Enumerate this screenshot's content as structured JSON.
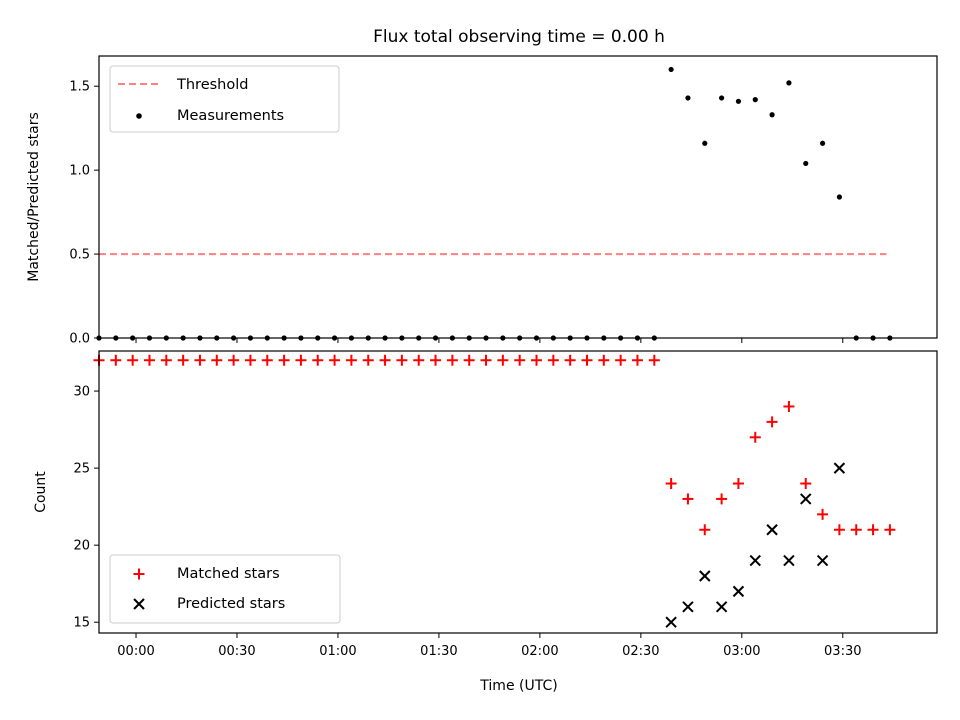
{
  "figure": {
    "title": "Flux total observing time = 0.00 h",
    "xlabel": "Time (UTC)"
  },
  "colors": {
    "threshold": "#ff8080",
    "measurement": "#000000",
    "matched": "#ff0000",
    "predicted": "#000000"
  },
  "chart_data": [
    {
      "type": "scatter",
      "ylabel": "Matched/Predicted stars",
      "xlim": [
        "23:49",
        "03:58"
      ],
      "ylim": [
        0,
        1.68
      ],
      "grid": false,
      "legend": "top-left",
      "x_ticks": [
        "00:00",
        "00:30",
        "01:00",
        "01:30",
        "02:00",
        "02:30",
        "03:00",
        "03:30"
      ],
      "y_ticks": [
        "0.0",
        "0.5",
        "1.0",
        "1.5"
      ],
      "threshold": {
        "name": "Threshold",
        "y": 0.5,
        "x_range": [
          "23:49",
          "03:43"
        ]
      },
      "series": [
        {
          "name": "Measurements",
          "x": [
            "23:49",
            "23:54",
            "23:59",
            "00:04",
            "00:09",
            "00:14",
            "00:19",
            "00:24",
            "00:29",
            "00:34",
            "00:39",
            "00:44",
            "00:49",
            "00:54",
            "00:59",
            "01:04",
            "01:09",
            "01:14",
            "01:19",
            "01:24",
            "01:29",
            "01:34",
            "01:39",
            "01:44",
            "01:49",
            "01:54",
            "01:59",
            "02:04",
            "02:09",
            "02:14",
            "02:19",
            "02:24",
            "02:29",
            "02:34",
            "02:39",
            "02:44",
            "02:49",
            "02:54",
            "02:59",
            "03:04",
            "03:09",
            "03:14",
            "03:19",
            "03:24",
            "03:29",
            "03:34",
            "03:39",
            "03:44"
          ],
          "y": [
            0,
            0,
            0,
            0,
            0,
            0,
            0,
            0,
            0,
            0,
            0,
            0,
            0,
            0,
            0,
            0,
            0,
            0,
            0,
            0,
            0,
            0,
            0,
            0,
            0,
            0,
            0,
            0,
            0,
            0,
            0,
            0,
            0,
            0,
            1.6,
            1.43,
            1.16,
            1.43,
            1.41,
            1.42,
            1.33,
            1.52,
            1.04,
            1.16,
            0.84,
            0,
            0,
            0
          ]
        }
      ]
    },
    {
      "type": "scatter",
      "ylabel": "Count",
      "xlim": [
        "23:49",
        "03:58"
      ],
      "ylim": [
        14.3,
        32.6
      ],
      "grid": false,
      "legend": "bottom-left",
      "x_ticks": [
        "00:00",
        "00:30",
        "01:00",
        "01:30",
        "02:00",
        "02:30",
        "03:00",
        "03:30"
      ],
      "y_ticks": [
        "15",
        "20",
        "25",
        "30"
      ],
      "series": [
        {
          "name": "Matched stars",
          "marker": "+",
          "x": [
            "23:49",
            "23:54",
            "23:59",
            "00:04",
            "00:09",
            "00:14",
            "00:19",
            "00:24",
            "00:29",
            "00:34",
            "00:39",
            "00:44",
            "00:49",
            "00:54",
            "00:59",
            "01:04",
            "01:09",
            "01:14",
            "01:19",
            "01:24",
            "01:29",
            "01:34",
            "01:39",
            "01:44",
            "01:49",
            "01:54",
            "01:59",
            "02:04",
            "02:09",
            "02:14",
            "02:19",
            "02:24",
            "02:29",
            "02:34",
            "02:39",
            "02:44",
            "02:49",
            "02:54",
            "02:59",
            "03:04",
            "03:09",
            "03:14",
            "03:19",
            "03:24",
            "03:29",
            "03:34",
            "03:39",
            "03:44"
          ],
          "y": [
            32,
            32,
            32,
            32,
            32,
            32,
            32,
            32,
            32,
            32,
            32,
            32,
            32,
            32,
            32,
            32,
            32,
            32,
            32,
            32,
            32,
            32,
            32,
            32,
            32,
            32,
            32,
            32,
            32,
            32,
            32,
            32,
            32,
            32,
            24,
            23,
            21,
            23,
            24,
            27,
            28,
            29,
            24,
            22,
            21,
            21,
            21,
            21
          ]
        },
        {
          "name": "Predicted stars",
          "marker": "x",
          "x": [
            "02:39",
            "02:44",
            "02:49",
            "02:54",
            "02:59",
            "03:04",
            "03:09",
            "03:14",
            "03:19",
            "03:24",
            "03:29"
          ],
          "y": [
            15,
            16,
            18,
            16,
            17,
            19,
            21,
            19,
            23,
            19,
            25
          ]
        }
      ]
    }
  ]
}
